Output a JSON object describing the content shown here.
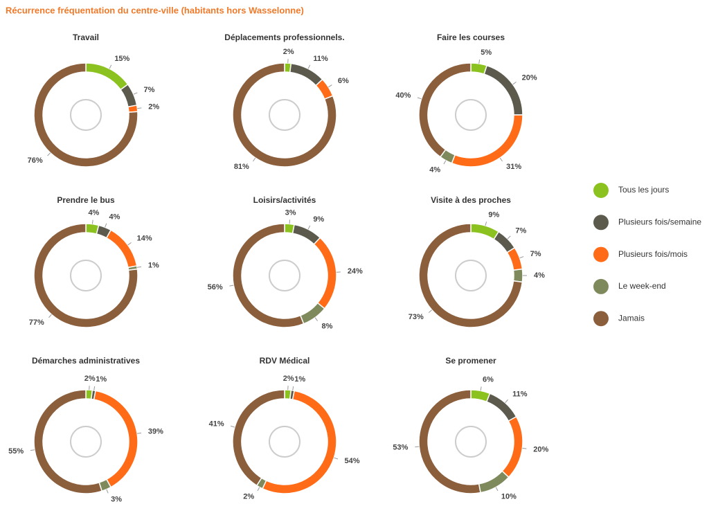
{
  "title": "Récurrence fréquentation du centre-ville (habitants hors Wasselonne)",
  "legend": [
    {
      "name": "Tous les jours",
      "color": "#8cc21f"
    },
    {
      "name": "Plusieurs fois/semaine",
      "color": "#5c5a4c"
    },
    {
      "name": "Plusieurs fois/mois",
      "color": "#ff6b17"
    },
    {
      "name": "Le week-end",
      "color": "#7f8a5c"
    },
    {
      "name": "Jamais",
      "color": "#8b5e3c"
    }
  ],
  "chart_data": [
    {
      "type": "donut",
      "title": "Travail",
      "values": [
        15,
        7,
        2,
        null,
        76
      ],
      "value_labels": [
        "15%",
        "7%",
        "2%",
        null,
        "76%"
      ]
    },
    {
      "type": "donut",
      "title": "Déplacements professionnels.",
      "values": [
        2,
        11,
        6,
        null,
        81
      ],
      "value_labels": [
        "2%",
        "11%",
        "6%",
        null,
        "81%"
      ]
    },
    {
      "type": "donut",
      "title": "Faire les courses",
      "values": [
        5,
        20,
        31,
        4,
        40
      ],
      "value_labels": [
        "5%",
        "20%",
        "31%",
        "4%",
        "40%"
      ]
    },
    {
      "type": "donut",
      "title": "Prendre le bus",
      "values": [
        4,
        4,
        14,
        1,
        77
      ],
      "value_labels": [
        "4%",
        "4%",
        "14%",
        "1%",
        "77%"
      ]
    },
    {
      "type": "donut",
      "title": "Loisirs/activités",
      "values": [
        3,
        9,
        24,
        8,
        56
      ],
      "value_labels": [
        "3%",
        "9%",
        "24%",
        "8%",
        "56%"
      ]
    },
    {
      "type": "donut",
      "title": "Visite à des proches",
      "values": [
        9,
        7,
        7,
        4,
        73
      ],
      "value_labels": [
        "9%",
        "7%",
        "7%",
        "4%",
        "73%"
      ]
    },
    {
      "type": "donut",
      "title": "Démarches administratives",
      "values": [
        2,
        1,
        39,
        3,
        55
      ],
      "value_labels": [
        "2%",
        "1%",
        "39%",
        "3%",
        "55%"
      ]
    },
    {
      "type": "donut",
      "title": "RDV Médical",
      "values": [
        2,
        1,
        54,
        2,
        41
      ],
      "value_labels": [
        "2%",
        "1%",
        "54%",
        "2%",
        "41%"
      ]
    },
    {
      "type": "donut",
      "title": "Se promener",
      "values": [
        6,
        11,
        20,
        10,
        53
      ],
      "value_labels": [
        "6%",
        "11%",
        "20%",
        "10%",
        "53%"
      ]
    }
  ]
}
